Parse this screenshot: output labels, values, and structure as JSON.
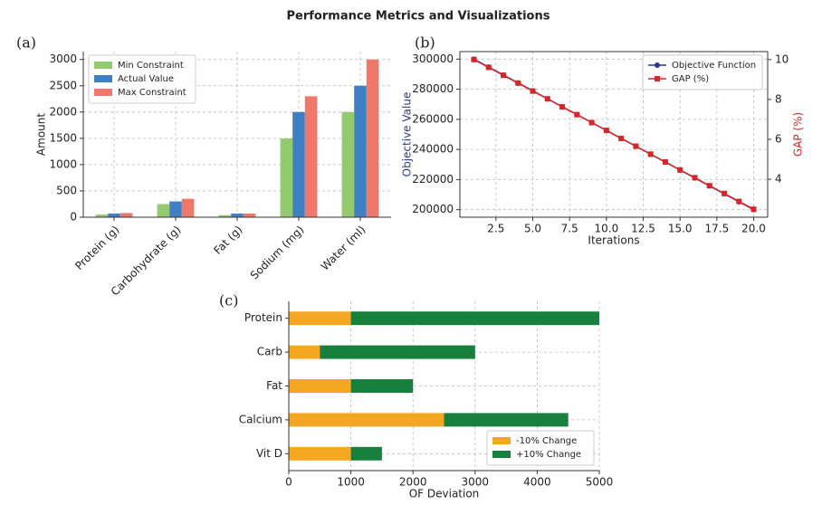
{
  "title": "Performance Metrics and Visualizations",
  "chart_data": [
    {
      "type": "bar",
      "label": "(a)",
      "ylabel": "Amount",
      "categories": [
        "Protein (g)",
        "Carbohydrate (g)",
        "Fat (g)",
        "Sodium (mg)",
        "Water (ml)"
      ],
      "series": [
        {
          "name": "Min Constraint",
          "color": "#93c96f",
          "values": [
            50,
            250,
            40,
            1500,
            2000
          ]
        },
        {
          "name": "Actual Value",
          "color": "#3f7fc4",
          "values": [
            70,
            300,
            70,
            2000,
            2500
          ]
        },
        {
          "name": "Max Constraint",
          "color": "#f0776a",
          "values": [
            80,
            350,
            70,
            2300,
            3000
          ]
        }
      ],
      "ylim": [
        0,
        3150
      ],
      "yticks": [
        0,
        500,
        1000,
        1500,
        2000,
        2500,
        3000
      ],
      "grid": true,
      "legend": "upper left"
    },
    {
      "type": "line",
      "label": "(b)",
      "xlabel": "Iterations",
      "ylabel": "Objective Value",
      "y2label": "GAP (%)",
      "x": [
        1,
        2,
        3,
        4,
        5,
        6,
        7,
        8,
        9,
        10,
        11,
        12,
        13,
        14,
        15,
        16,
        17,
        18,
        19,
        20
      ],
      "series": [
        {
          "name": "Objective Function",
          "color": "#2b3a8f",
          "marker": "circle",
          "values": [
            300000,
            294737,
            289474,
            284211,
            278947,
            273684,
            268421,
            263158,
            257895,
            252632,
            247368,
            242105,
            236842,
            231579,
            226316,
            221053,
            215789,
            210526,
            205263,
            200000
          ]
        },
        {
          "name": "GAP (%)",
          "color": "#d62728",
          "marker": "square",
          "axis": "y2",
          "values": [
            10,
            9.61,
            9.21,
            8.82,
            8.42,
            8.03,
            7.63,
            7.24,
            6.84,
            6.45,
            6.05,
            5.66,
            5.26,
            4.87,
            4.47,
            4.08,
            3.68,
            3.29,
            2.89,
            2.5
          ]
        }
      ],
      "xlim": [
        0.05,
        20.95
      ],
      "xticks": [
        2.5,
        {
          "value": 5,
          "label": "5.0"
        },
        7.5,
        {
          "value": 10,
          "label": "10.0"
        },
        12.5,
        {
          "value": 15,
          "label": "15.0"
        },
        17.5,
        {
          "value": 20,
          "label": "20.0"
        }
      ],
      "ylim": [
        195000,
        305000
      ],
      "yticks": [
        200000,
        220000,
        240000,
        260000,
        280000,
        300000
      ],
      "y2lim": [
        2.1,
        10.4
      ],
      "y2ticks": [
        4,
        6,
        8,
        10
      ],
      "grid": true,
      "legend": "upper right"
    },
    {
      "type": "barh",
      "label": "(c)",
      "xlabel": "OF Deviation",
      "categories": [
        "Protein",
        "Carb",
        "Fat",
        "Calcium",
        "Vit D"
      ],
      "series": [
        {
          "name": "-10% Change",
          "color": "#f5a623",
          "values": [
            1000,
            500,
            1000,
            2500,
            1000
          ]
        },
        {
          "name": "+10% Change",
          "color": "#17803d",
          "values": [
            4000,
            2500,
            1000,
            2000,
            500
          ]
        }
      ],
      "xlim": [
        0,
        5000
      ],
      "xticks": [
        0,
        1000,
        2000,
        3000,
        4000,
        5000
      ],
      "grid": true,
      "legend": "lower right"
    }
  ]
}
